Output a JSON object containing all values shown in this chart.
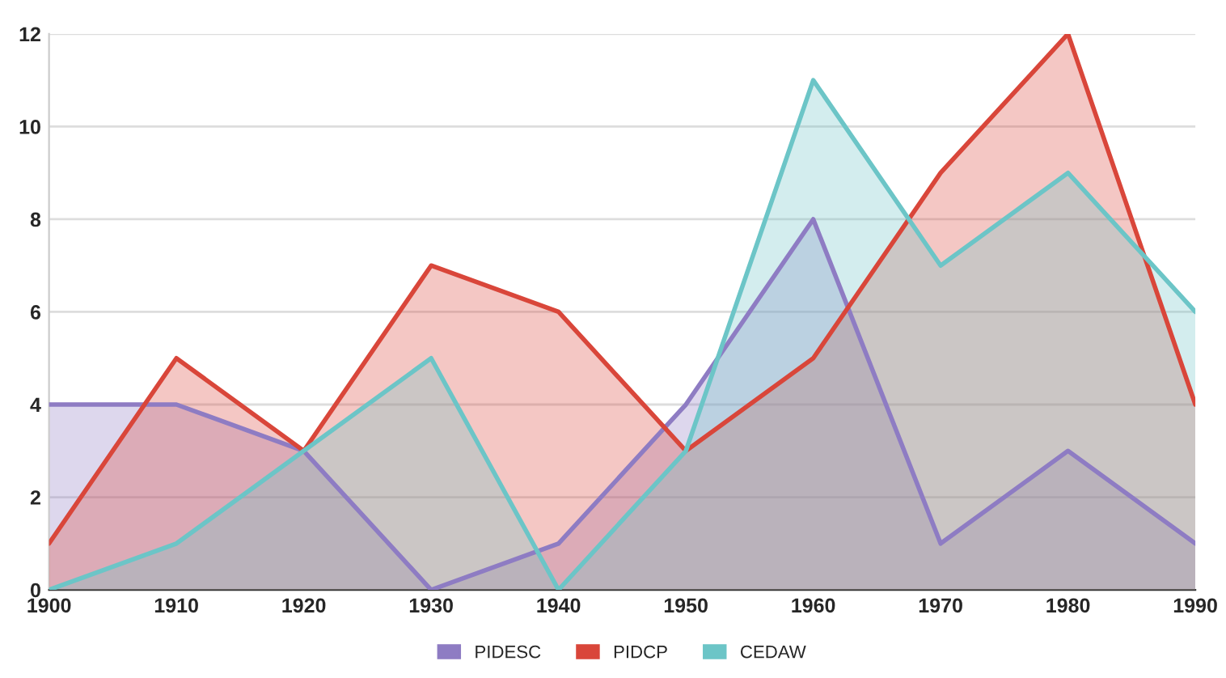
{
  "chart_data": {
    "type": "area",
    "x": [
      1900,
      1910,
      1920,
      1930,
      1940,
      1950,
      1960,
      1970,
      1980,
      1990
    ],
    "series": [
      {
        "name": "PIDESC",
        "color": "#8e7cc3",
        "values": [
          4,
          4,
          3,
          0,
          1,
          4,
          8,
          1,
          3,
          1
        ]
      },
      {
        "name": "PIDCP",
        "color": "#d9463a",
        "values": [
          1,
          5,
          3,
          7,
          6,
          3,
          5,
          9,
          12,
          4
        ]
      },
      {
        "name": "CEDAW",
        "color": "#6cc5c7",
        "values": [
          0,
          1,
          3,
          5,
          0,
          3,
          11,
          7,
          9,
          6
        ]
      }
    ],
    "xlim": [
      1900,
      1990
    ],
    "xticks": [
      1900,
      1910,
      1920,
      1930,
      1940,
      1950,
      1960,
      1970,
      1980,
      1990
    ],
    "ylim": [
      0,
      12
    ],
    "yticks": [
      0,
      2,
      4,
      6,
      8,
      10,
      12
    ],
    "grid": "y",
    "legend": "bottom",
    "marker": "none",
    "line_style": "solid"
  }
}
